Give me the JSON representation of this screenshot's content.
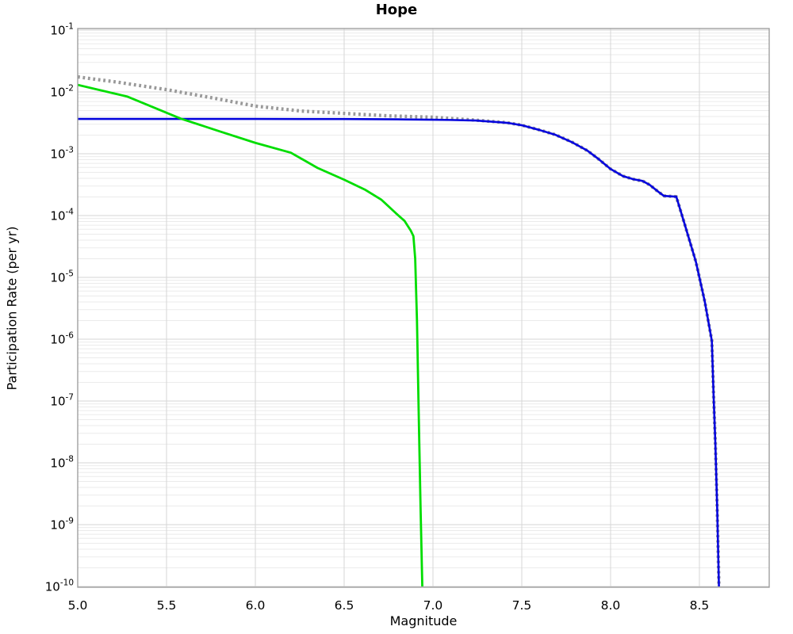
{
  "figure": {
    "title": "Hope",
    "xlabel": "Magnitude",
    "ylabel": "Participation Rate (per yr)"
  },
  "axes": {
    "x_tick_labels": [
      "5.0",
      "5.5",
      "6.0",
      "6.5",
      "7.0",
      "7.5",
      "8.0",
      "8.5"
    ],
    "x_tick_values": [
      5.0,
      5.5,
      6.0,
      6.5,
      7.0,
      7.5,
      8.0,
      8.5
    ],
    "y_tick_base": "10",
    "y_tick_exponents": [
      -1,
      -2,
      -3,
      -4,
      -5,
      -6,
      -7,
      -8,
      -9,
      -10
    ]
  },
  "style": {
    "background": "#ffffff",
    "frame_color": "#999999",
    "grid_major_color": "#d6d6d6",
    "grid_minor_color": "#ebebeb",
    "dotted_color": "#999999",
    "blue_color": "#0505dd",
    "green_color": "#00dd00"
  },
  "chart_data": {
    "type": "line",
    "title": "Hope",
    "xlabel": "Magnitude",
    "ylabel": "Participation Rate (per yr)",
    "xlim": [
      5.0,
      8.893
    ],
    "ylim": [
      1e-10,
      0.1
    ],
    "yscale": "log",
    "x_major_tick_step": 0.5,
    "grid": "major and log-minor horizontal lines, major vertical lines, light gray",
    "legend": "none",
    "series": [
      {
        "name": "total-rate-dotted",
        "color": "#999999",
        "style": "dotted",
        "width": 4.3,
        "points": [
          [
            5.0,
            0.0175
          ],
          [
            5.23,
            0.0143
          ],
          [
            5.5,
            0.0109
          ],
          [
            5.77,
            0.0079
          ],
          [
            6.0,
            0.0059
          ],
          [
            6.26,
            0.0049
          ],
          [
            6.5,
            0.0045
          ],
          [
            6.75,
            0.0041
          ],
          [
            7.0,
            0.0039
          ],
          [
            7.1,
            0.00372
          ],
          [
            7.24,
            0.0035
          ],
          [
            7.42,
            0.00318
          ],
          [
            7.5,
            0.0029
          ],
          [
            7.6,
            0.00243
          ],
          [
            7.69,
            0.00203
          ],
          [
            7.78,
            0.00156
          ],
          [
            7.87,
            0.00112
          ],
          [
            7.93,
            0.00083
          ],
          [
            8.0,
            0.000566
          ],
          [
            8.07,
            0.000435
          ],
          [
            8.13,
            0.000386
          ],
          [
            8.18,
            0.000363
          ],
          [
            8.22,
            0.000314
          ],
          [
            8.27,
            0.000241
          ],
          [
            8.3,
            0.000208
          ],
          [
            8.37,
            0.000202
          ],
          [
            8.42,
            6.8e-05
          ],
          [
            8.48,
            1.8e-05
          ],
          [
            8.53,
            4.1e-06
          ],
          [
            8.57,
            9.4e-07
          ],
          [
            8.58,
            1.2e-07
          ],
          [
            8.59,
            2e-08
          ],
          [
            8.6,
            1.9e-09
          ],
          [
            8.61,
            1e-10
          ]
        ]
      },
      {
        "name": "characteristic-blue-solid",
        "color": "#0505dd",
        "style": "solid",
        "width": 2.6,
        "points": [
          [
            5.0,
            0.00366
          ],
          [
            5.5,
            0.00366
          ],
          [
            6.0,
            0.00366
          ],
          [
            6.5,
            0.00364
          ],
          [
            6.8,
            0.0036
          ],
          [
            7.0,
            0.00355
          ],
          [
            7.1,
            0.00352
          ],
          [
            7.24,
            0.00345
          ],
          [
            7.42,
            0.00316
          ],
          [
            7.5,
            0.00289
          ],
          [
            7.6,
            0.00242
          ],
          [
            7.69,
            0.00202
          ],
          [
            7.78,
            0.00155
          ],
          [
            7.87,
            0.00112
          ],
          [
            7.93,
            0.00083
          ],
          [
            8.0,
            0.000566
          ],
          [
            8.07,
            0.000435
          ],
          [
            8.13,
            0.000386
          ],
          [
            8.18,
            0.000363
          ],
          [
            8.22,
            0.000314
          ],
          [
            8.27,
            0.000241
          ],
          [
            8.3,
            0.000208
          ],
          [
            8.37,
            0.000202
          ],
          [
            8.42,
            6.8e-05
          ],
          [
            8.48,
            1.8e-05
          ],
          [
            8.53,
            4.1e-06
          ],
          [
            8.57,
            9.4e-07
          ],
          [
            8.58,
            1.2e-07
          ],
          [
            8.59,
            2e-08
          ],
          [
            8.6,
            1.9e-09
          ],
          [
            8.61,
            1e-10
          ]
        ]
      },
      {
        "name": "gutenberg-richter-green-solid",
        "color": "#00dd00",
        "style": "solid",
        "width": 2.8,
        "points": [
          [
            5.0,
            0.013
          ],
          [
            5.28,
            0.0084
          ],
          [
            5.58,
            0.0037
          ],
          [
            5.8,
            0.0023
          ],
          [
            6.0,
            0.0015
          ],
          [
            6.2,
            0.00104
          ],
          [
            6.35,
            0.00059
          ],
          [
            6.5,
            0.00038
          ],
          [
            6.62,
            0.00026
          ],
          [
            6.71,
            0.00018
          ],
          [
            6.79,
            0.00011
          ],
          [
            6.84,
            8.2e-05
          ],
          [
            6.875,
            5.7e-05
          ],
          [
            6.89,
            4.65e-05
          ],
          [
            6.9,
            2e-05
          ],
          [
            6.91,
            2e-06
          ],
          [
            6.92,
            5.8e-08
          ],
          [
            6.93,
            2e-09
          ],
          [
            6.94,
            1e-10
          ]
        ]
      }
    ]
  }
}
